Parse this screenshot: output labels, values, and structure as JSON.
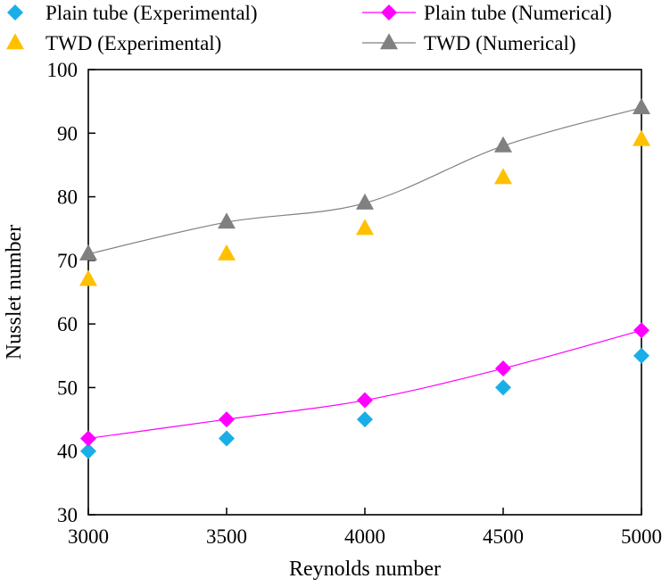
{
  "chart_data": {
    "type": "line",
    "title": "",
    "xlabel": "Reynolds number",
    "ylabel": "Nusslet number",
    "xlim": [
      3000,
      5000
    ],
    "ylim": [
      30,
      100
    ],
    "x_ticks": [
      3000,
      3500,
      4000,
      4500,
      5000
    ],
    "y_ticks": [
      30,
      40,
      50,
      60,
      70,
      80,
      90,
      100
    ],
    "grid": false,
    "legend_position": "top",
    "x": [
      3000,
      3500,
      4000,
      4500,
      5000
    ],
    "series": [
      {
        "name": "Plain tube (Experimental)",
        "values": [
          40,
          42,
          45,
          50,
          55
        ],
        "marker": "diamond",
        "line": false,
        "color": "#1aaee8"
      },
      {
        "name": "Plain tube (Numerical)",
        "values": [
          42,
          45,
          48,
          53,
          59
        ],
        "marker": "diamond",
        "line": true,
        "color": "#ff00ff"
      },
      {
        "name": "TWD (Experimental)",
        "values": [
          67,
          71,
          75,
          83,
          89
        ],
        "marker": "triangle",
        "line": false,
        "color": "#ffc000"
      },
      {
        "name": "TWD (Numerical)",
        "values": [
          71,
          76,
          79,
          88,
          94
        ],
        "marker": "triangle",
        "line": true,
        "color": "#808080"
      }
    ]
  }
}
